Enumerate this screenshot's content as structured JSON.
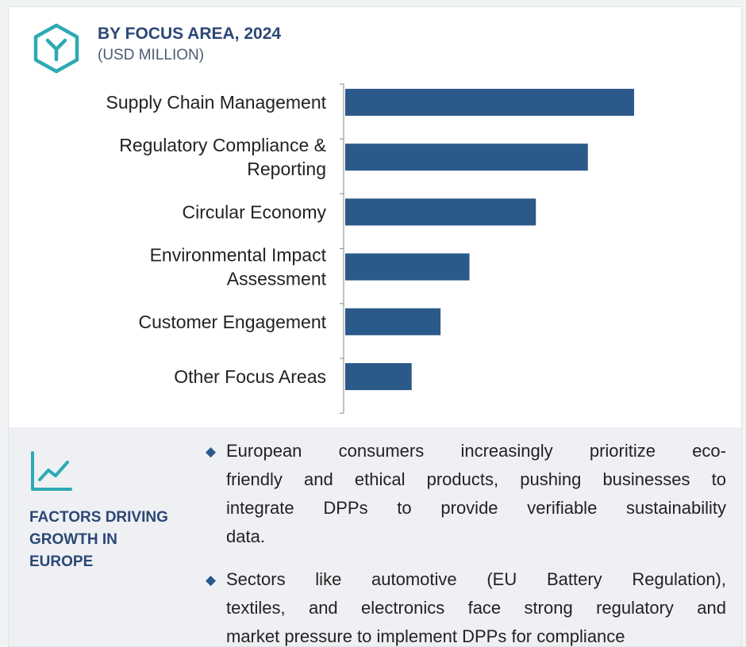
{
  "header": {
    "title": "BY FOCUS AREA, 2024",
    "subtitle": "(USD MILLION)",
    "logo_icon": "hexagon-y-icon"
  },
  "chart_data": {
    "type": "bar",
    "orientation": "horizontal",
    "title": "BY FOCUS AREA, 2024",
    "subtitle": "(USD MILLION)",
    "categories": [
      [
        "Supply Chain Management"
      ],
      [
        "Regulatory Compliance &",
        "Reporting"
      ],
      [
        "Circular Economy"
      ],
      [
        "Environmental Impact",
        "Assessment"
      ],
      [
        "Customer Engagement"
      ],
      [
        "Other Focus Areas"
      ]
    ],
    "values": [
      100,
      84,
      66,
      43,
      33,
      23
    ],
    "bar_color": "#2b5a8a",
    "grid": false,
    "value_labels": false,
    "xaxis_visible": false
  },
  "factors": {
    "icon": "line-chart-icon",
    "title_lines": [
      "FACTORS DRIVING",
      "GROWTH IN",
      "EUROPE"
    ],
    "bullets": [
      {
        "lines": [
          "European consumers increasingly prioritize eco-",
          "friendly and ethical products, pushing businesses to",
          "integrate DPPs to provide verifiable sustainability",
          "data."
        ]
      },
      {
        "lines": [
          "Sectors like automotive (EU Battery Regulation),",
          "textiles, and electronics face strong regulatory and",
          "market pressure to implement DPPs for compliance"
        ]
      }
    ]
  },
  "colors": {
    "accent": "#2b4775",
    "bar": "#2b5a8a",
    "logo": "#2eaab4",
    "panel": "#eef0f4"
  }
}
